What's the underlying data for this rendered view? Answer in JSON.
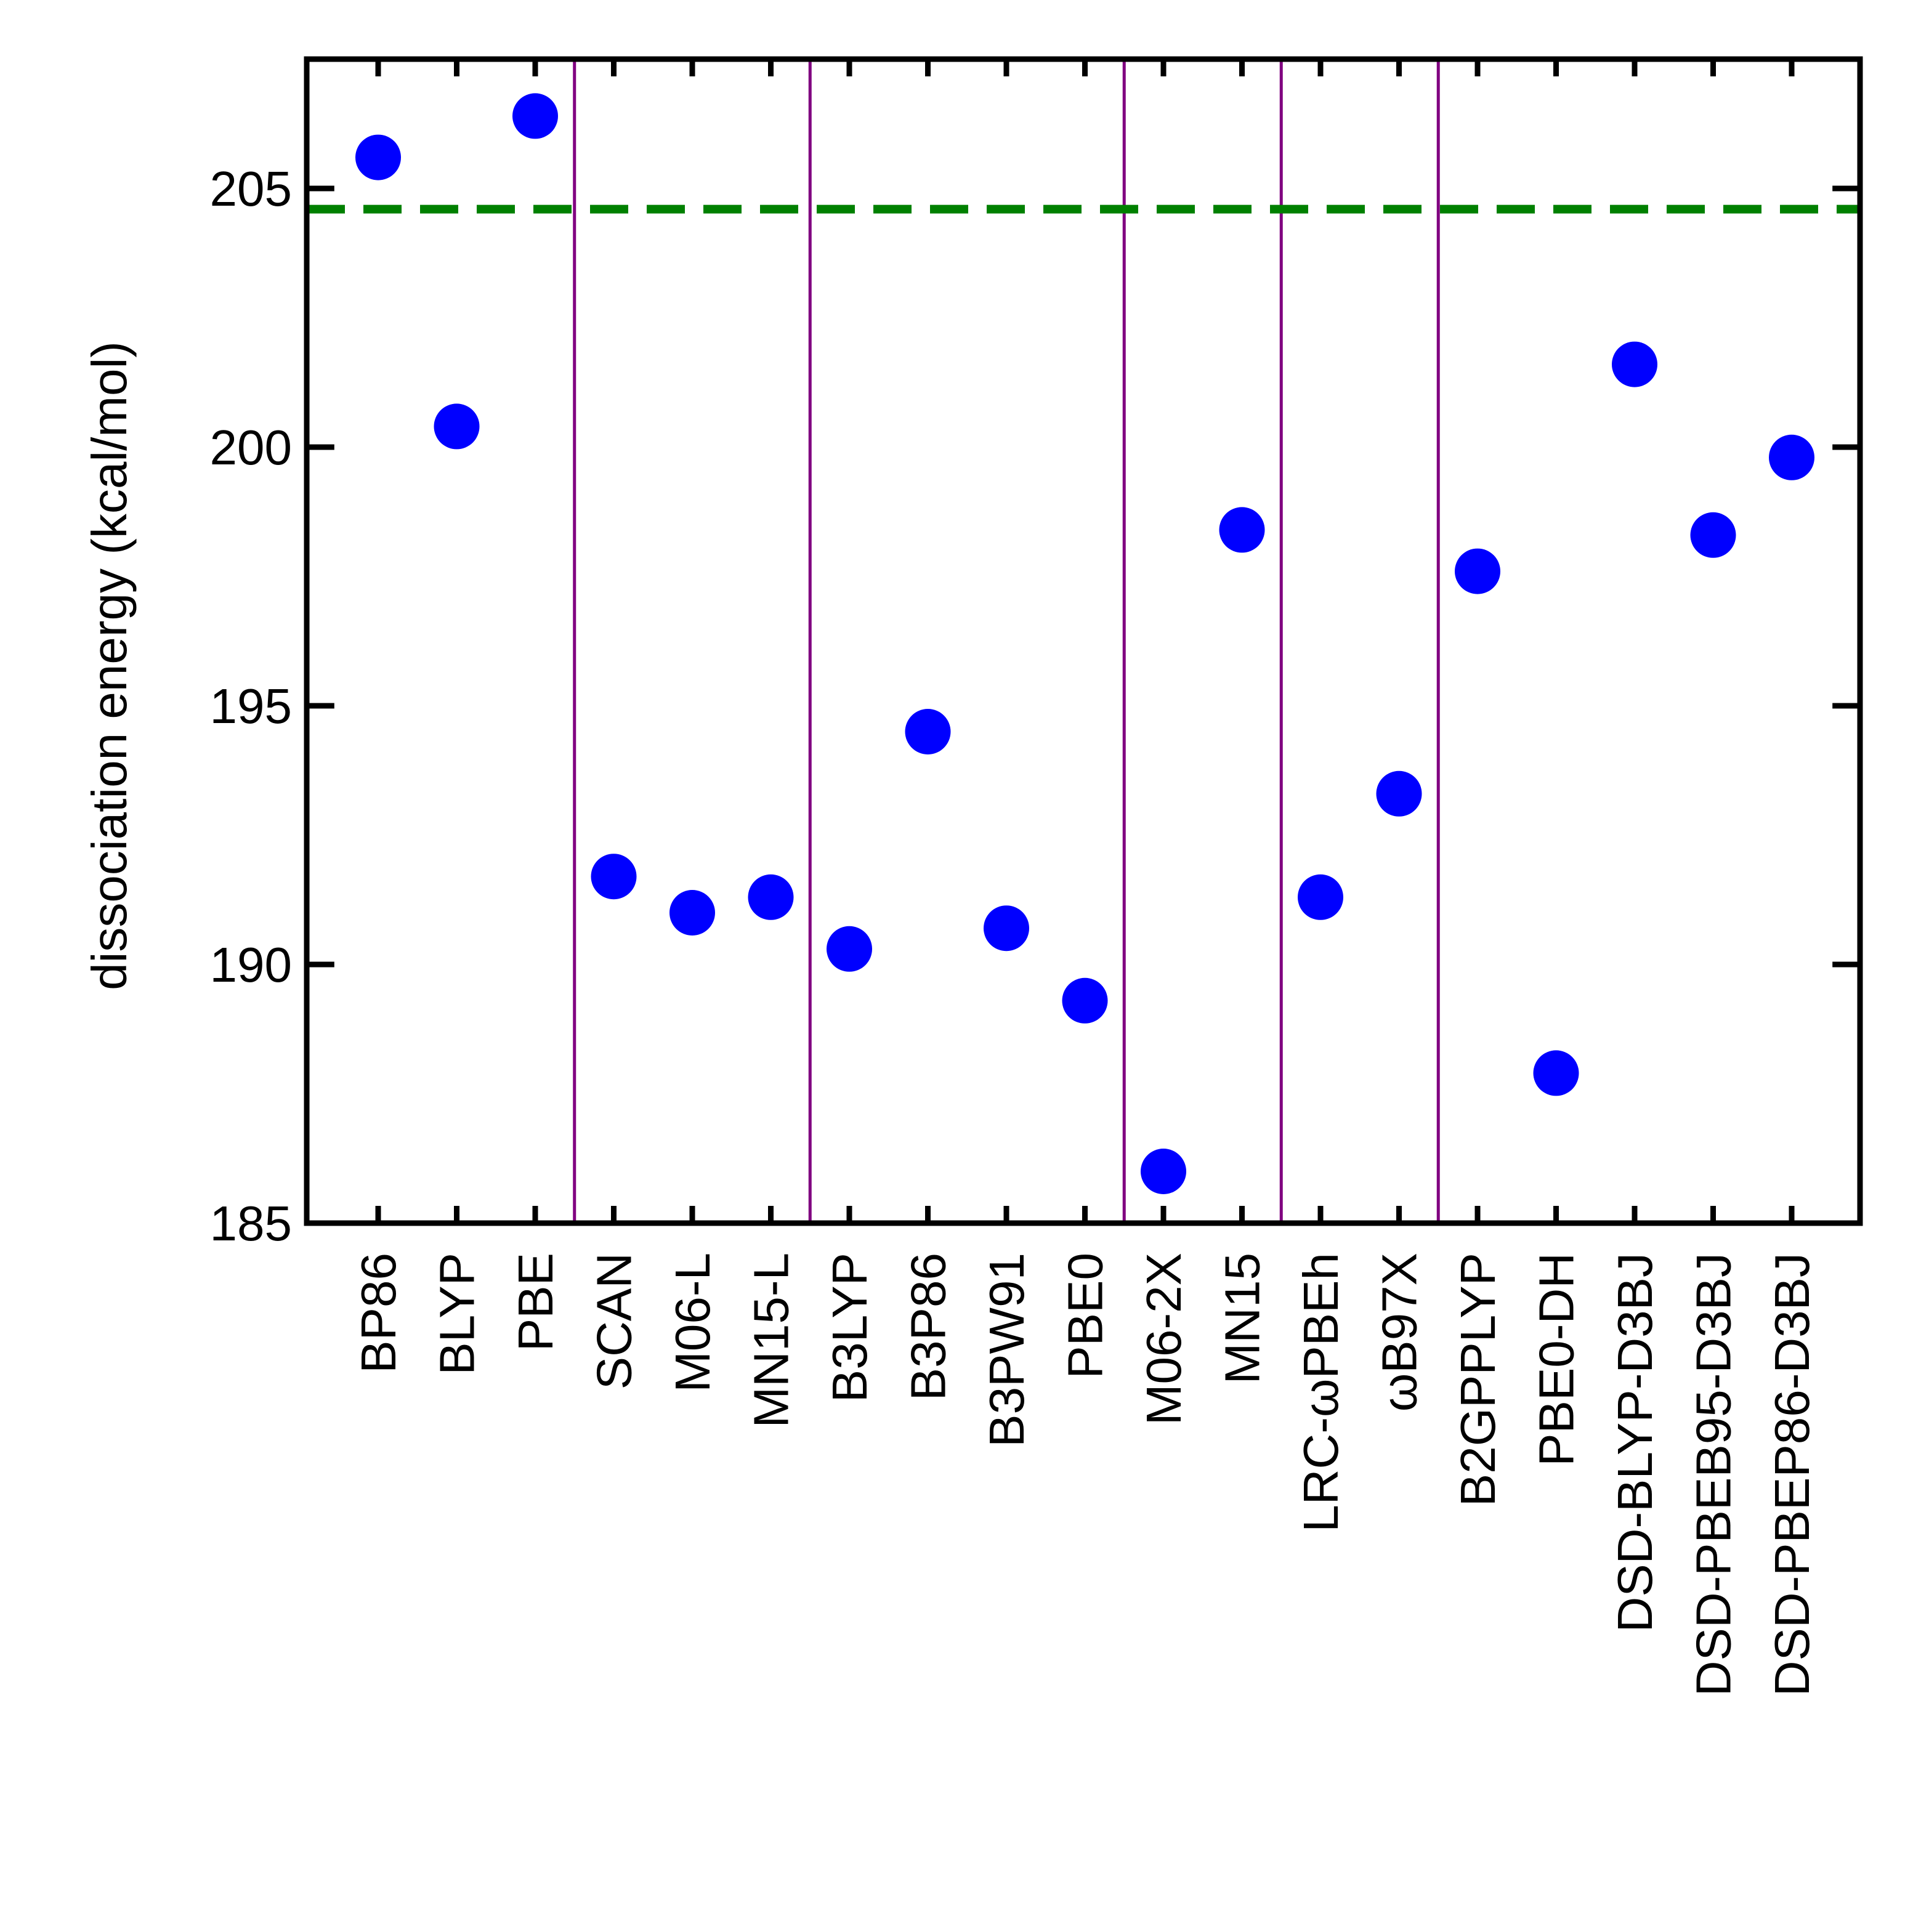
{
  "chart_data": {
    "type": "scatter",
    "title": "",
    "xlabel": "",
    "ylabel": "dissociation energy (kcal/mol)",
    "ylim": [
      185,
      207.5
    ],
    "yticks": [
      185,
      190,
      195,
      200,
      205
    ],
    "ytick_labels": [
      "185",
      "190",
      "195",
      "200",
      "205"
    ],
    "grid": false,
    "legend": "none",
    "categories": [
      "BP86",
      "BLYP",
      "PBE",
      "SCAN",
      "M06-L",
      "MN15-L",
      "B3LYP",
      "B3P86",
      "B3PW91",
      "PBE0",
      "M06-2X",
      "MN15",
      "LRC-ωPBEh",
      "ωB97X",
      "B2GPPLYP",
      "PBE0-DH",
      "DSD-BLYP-D3BJ",
      "DSD-PBEB95-D3BJ",
      "DSD-PBEP86-D3BJ"
    ],
    "values": [
      205.6,
      200.4,
      206.4,
      191.7,
      191.0,
      191.3,
      190.3,
      194.5,
      190.7,
      189.3,
      186.0,
      198.4,
      191.3,
      193.3,
      197.6,
      187.9,
      201.6,
      198.3,
      199.8
    ],
    "reference_line": {
      "y": 204.6,
      "style": "dashed",
      "color": "#008000"
    },
    "group_separators_after_index": [
      2,
      5,
      9,
      11,
      13
    ],
    "separator_color": "#800080",
    "marker_color": "#0000ff"
  }
}
